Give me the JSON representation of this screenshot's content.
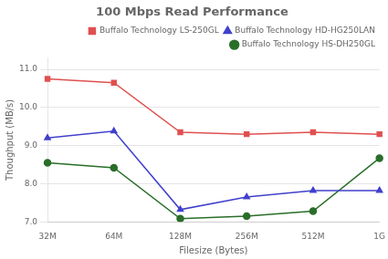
{
  "chart_data": {
    "type": "line",
    "title": "100 Mbps Read Performance",
    "xlabel": "Filesize (Bytes)",
    "ylabel": "Thoughput (MB/s)",
    "categories": [
      "32M",
      "64M",
      "128M",
      "256M",
      "512M",
      "1G"
    ],
    "series": [
      {
        "name": "Buffalo Technology LS-250GL",
        "color": "#e05050",
        "marker": "square",
        "values": [
          10.75,
          10.65,
          9.35,
          9.3,
          9.35,
          9.3
        ]
      },
      {
        "name": "Buffalo Technology HD-HG250LAN",
        "color": "#4040cc",
        "marker": "triangle",
        "values": [
          9.2,
          9.38,
          7.32,
          7.65,
          7.82,
          7.82
        ]
      },
      {
        "name": "Buffalo Technology HS-DH250GL",
        "color": "#2a6e2a",
        "marker": "circle",
        "values": [
          8.55,
          8.42,
          7.08,
          7.15,
          7.28,
          8.67
        ]
      }
    ],
    "ylim": [
      7.0,
      11.3
    ],
    "yticks": [
      {
        "value": 7.0,
        "label": "7.0"
      },
      {
        "value": 8.0,
        "label": "8.0"
      },
      {
        "value": 9.0,
        "label": "9.0"
      },
      {
        "value": 10.0,
        "label": "10.0"
      },
      {
        "value": 11.0,
        "label": "11.0"
      }
    ],
    "grid": true,
    "legend": "upper right"
  }
}
